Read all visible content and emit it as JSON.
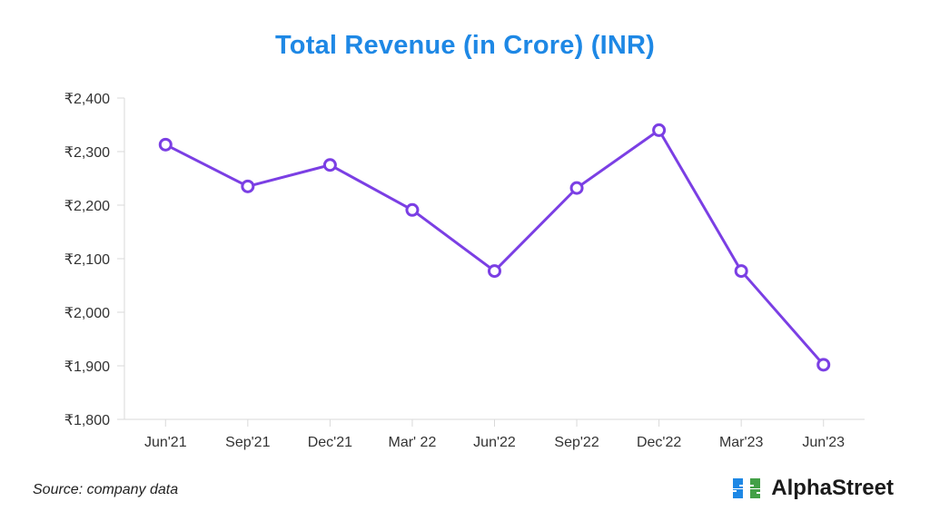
{
  "chart_data": {
    "type": "line",
    "title": "Total Revenue (in Crore) (INR)",
    "categories": [
      "Jun'21",
      "Sep'21",
      "Dec'21",
      "Mar' 22",
      "Jun'22",
      "Sep'22",
      "Dec'22",
      "Mar'23",
      "Jun'23"
    ],
    "series": [
      {
        "name": "Total Revenue",
        "values": [
          2313,
          2235,
          2275,
          2191,
          2077,
          2232,
          2340,
          2077,
          1902
        ]
      }
    ],
    "ylim": [
      1800,
      2400
    ],
    "yticks": [
      1800,
      1900,
      2000,
      2100,
      2200,
      2300,
      2400
    ],
    "ytick_labels": [
      "₹1,800",
      "₹1,900",
      "₹2,000",
      "₹2,100",
      "₹2,200",
      "₹2,300",
      "₹2,400"
    ],
    "xlabel": "",
    "ylabel": "",
    "grid": false
  },
  "colors": {
    "title": "#1e88e5",
    "line": "#7b3fe4",
    "logo_blue": "#1e88e5",
    "logo_green": "#43a047"
  },
  "footer": {
    "source": "Source: company data",
    "brand": "AlphaStreet",
    "logo_icon": "alphastreet-logo-icon"
  }
}
